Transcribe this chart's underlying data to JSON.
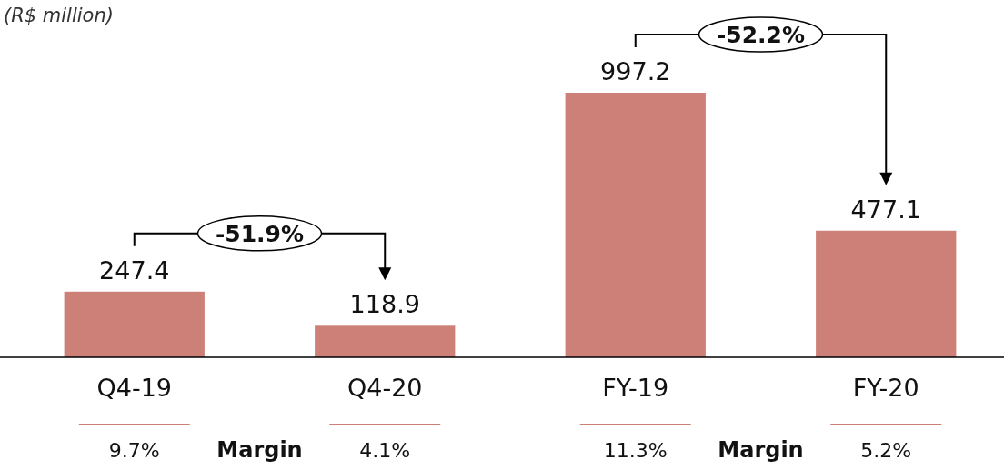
{
  "chart_data": {
    "type": "bar",
    "ylabel": "(R$ million)",
    "categories": [
      "Q4-19",
      "Q4-20",
      "FY-19",
      "FY-20"
    ],
    "values": [
      247.4,
      118.9,
      997.2,
      477.1
    ],
    "color": "#cc8077",
    "data_labels": true,
    "annotations": [
      "-51.9%",
      "-52.2%",
      "9.7%",
      "4.1%",
      "11.3%",
      "5.2%",
      "Margin",
      "Margin"
    ]
  }
}
